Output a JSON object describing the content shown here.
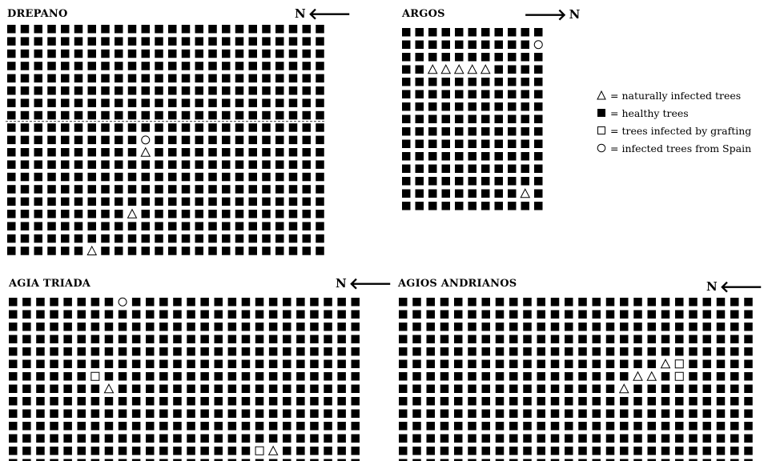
{
  "legend": {
    "items": [
      {
        "symbol": "triangle",
        "text": "= naturally infected trees"
      },
      {
        "symbol": "square-filled",
        "text": "= healthy trees"
      },
      {
        "symbol": "square-open",
        "text": "= trees infected by grafting"
      },
      {
        "symbol": "circle-open",
        "text": "= infected trees from Spain"
      }
    ]
  },
  "plots": [
    {
      "id": "drepano",
      "title": "DREPANO",
      "north_label": "N",
      "north_arrow": "left",
      "rows": 19,
      "cols": 24,
      "divider_after_row": 7,
      "markers": [
        {
          "row": 9,
          "col": 10,
          "symbol": "circle"
        },
        {
          "row": 10,
          "col": 10,
          "symbol": "triangle"
        },
        {
          "row": 15,
          "col": 9,
          "symbol": "triangle"
        },
        {
          "row": 18,
          "col": 6,
          "symbol": "triangle"
        }
      ]
    },
    {
      "id": "argos",
      "title": "ARGOS",
      "north_label": "N",
      "north_arrow": "right",
      "rows": 15,
      "cols": 11,
      "markers": [
        {
          "row": 1,
          "col": 10,
          "symbol": "circle"
        },
        {
          "row": 3,
          "col": 2,
          "symbol": "triangle"
        },
        {
          "row": 3,
          "col": 3,
          "symbol": "triangle"
        },
        {
          "row": 3,
          "col": 4,
          "symbol": "triangle"
        },
        {
          "row": 3,
          "col": 5,
          "symbol": "triangle"
        },
        {
          "row": 3,
          "col": 6,
          "symbol": "triangle"
        },
        {
          "row": 13,
          "col": 9,
          "symbol": "triangle"
        }
      ]
    },
    {
      "id": "agia-triada",
      "title": "AGIA TRIADA",
      "north_label": "N",
      "north_arrow": "left",
      "rows": 14,
      "cols": 26,
      "markers": [
        {
          "row": 0,
          "col": 8,
          "symbol": "circle"
        },
        {
          "row": 6,
          "col": 6,
          "symbol": "square"
        },
        {
          "row": 7,
          "col": 7,
          "symbol": "triangle"
        },
        {
          "row": 12,
          "col": 18,
          "symbol": "square"
        },
        {
          "row": 12,
          "col": 19,
          "symbol": "triangle"
        }
      ]
    },
    {
      "id": "agios-andrianos",
      "title": "AGIOS ANDRIANOS",
      "north_label": "N",
      "north_arrow": "left",
      "rows": 14,
      "cols": 26,
      "markers": [
        {
          "row": 5,
          "col": 19,
          "symbol": "triangle"
        },
        {
          "row": 5,
          "col": 20,
          "symbol": "square"
        },
        {
          "row": 6,
          "col": 17,
          "symbol": "triangle"
        },
        {
          "row": 6,
          "col": 18,
          "symbol": "triangle"
        },
        {
          "row": 6,
          "col": 20,
          "symbol": "square"
        },
        {
          "row": 7,
          "col": 16,
          "symbol": "triangle"
        }
      ]
    }
  ]
}
